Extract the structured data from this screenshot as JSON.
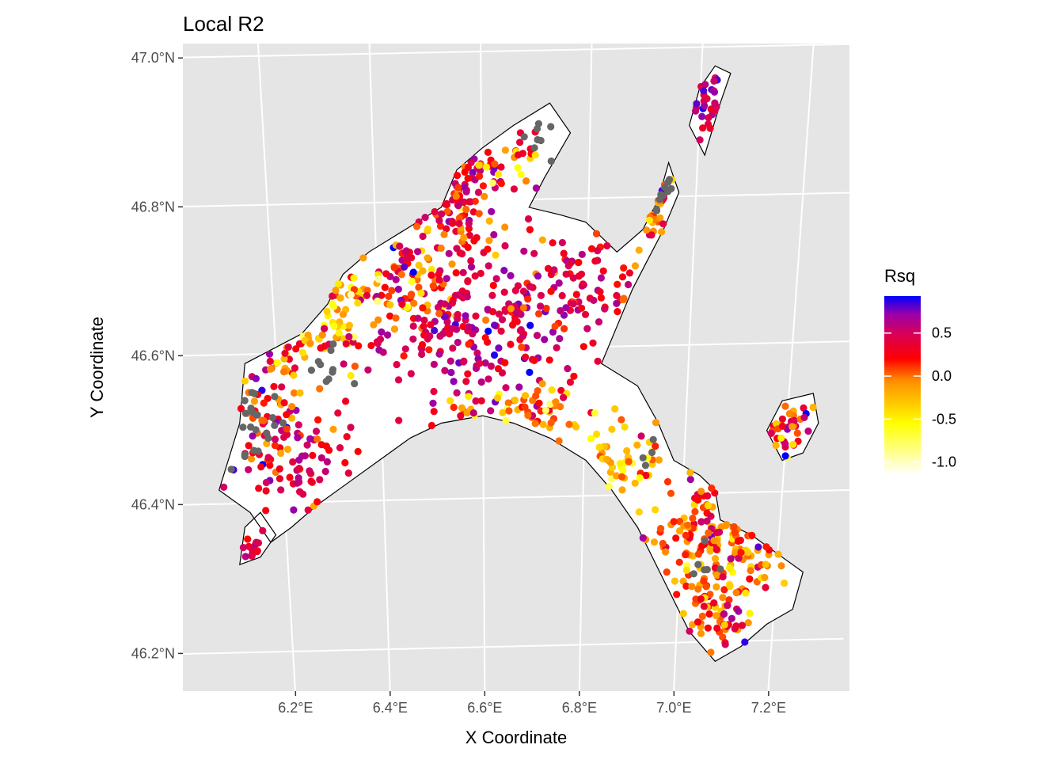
{
  "chart_data": {
    "type": "scatter",
    "subtype": "geographic point map with region outline",
    "title": "Local R2",
    "xlabel": "X Coordinate",
    "ylabel": "Y Coordinate",
    "xlim": [
      6.02,
      7.31
    ],
    "ylim": [
      46.14,
      47.01
    ],
    "x_ticks": [
      {
        "value": 6.2,
        "label": "6.2°E"
      },
      {
        "value": 6.4,
        "label": "6.4°E"
      },
      {
        "value": 6.6,
        "label": "6.6°E"
      },
      {
        "value": 6.8,
        "label": "6.8°E"
      },
      {
        "value": 7.0,
        "label": "7.0°E"
      },
      {
        "value": 7.2,
        "label": "7.2°E"
      }
    ],
    "y_ticks": [
      {
        "value": 46.2,
        "label": "46.2°N"
      },
      {
        "value": 46.4,
        "label": "46.4°N"
      },
      {
        "value": 46.6,
        "label": "46.6°N"
      },
      {
        "value": 46.8,
        "label": "46.8°N"
      },
      {
        "value": 47.0,
        "label": "47.0°N"
      }
    ],
    "grid": true,
    "panel_background": "#e5e5e5",
    "grid_color": "#ffffff",
    "legend": {
      "title": "Rsq",
      "position": "right",
      "range": [
        -1.15,
        0.93
      ],
      "breaks": [
        {
          "value": 0.5,
          "label": "0.5"
        },
        {
          "value": 0.0,
          "label": "0.0"
        },
        {
          "value": -0.5,
          "label": "-0.5"
        },
        {
          "value": -1.0,
          "label": "-1.0"
        }
      ],
      "gradient": [
        {
          "value": -1.15,
          "color": "#ffffff"
        },
        {
          "value": -0.55,
          "color": "#ffff00"
        },
        {
          "value": -0.05,
          "color": "#ff8c00"
        },
        {
          "value": 0.2,
          "color": "#ff0000"
        },
        {
          "value": 0.5,
          "color": "#d6005a"
        },
        {
          "value": 0.72,
          "color": "#9a00aa"
        },
        {
          "value": 0.93,
          "color": "#0000ff"
        }
      ]
    },
    "na_color": "#666666",
    "outline_color": "#000000",
    "region_outline": [
      [
        [
          6.09,
          46.41
        ],
        [
          6.13,
          46.5
        ],
        [
          6.14,
          46.58
        ],
        [
          6.25,
          46.62
        ],
        [
          6.3,
          46.66
        ],
        [
          6.33,
          46.7
        ],
        [
          6.38,
          46.73
        ],
        [
          6.45,
          46.76
        ],
        [
          6.52,
          46.79
        ],
        [
          6.55,
          46.84
        ],
        [
          6.6,
          46.87
        ],
        [
          6.66,
          46.9
        ],
        [
          6.73,
          46.93
        ],
        [
          6.77,
          46.89
        ],
        [
          6.72,
          46.83
        ],
        [
          6.69,
          46.79
        ],
        [
          6.75,
          46.78
        ],
        [
          6.8,
          46.77
        ],
        [
          6.86,
          46.73
        ],
        [
          6.91,
          46.76
        ],
        [
          6.94,
          46.8
        ],
        [
          6.96,
          46.85
        ],
        [
          6.98,
          46.81
        ],
        [
          6.95,
          46.76
        ],
        [
          6.92,
          46.72
        ],
        [
          6.89,
          46.68
        ],
        [
          6.86,
          46.63
        ],
        [
          6.83,
          46.58
        ],
        [
          6.9,
          46.55
        ],
        [
          6.94,
          46.5
        ],
        [
          6.97,
          46.45
        ],
        [
          7.02,
          46.43
        ],
        [
          7.05,
          46.41
        ],
        [
          7.06,
          46.37
        ],
        [
          7.12,
          46.35
        ],
        [
          7.18,
          46.32
        ],
        [
          7.22,
          46.3
        ],
        [
          7.2,
          46.25
        ],
        [
          7.15,
          46.23
        ],
        [
          7.1,
          46.2
        ],
        [
          7.05,
          46.18
        ],
        [
          7.0,
          46.22
        ],
        [
          6.95,
          46.29
        ],
        [
          6.9,
          46.36
        ],
        [
          6.85,
          46.41
        ],
        [
          6.8,
          46.45
        ],
        [
          6.73,
          46.48
        ],
        [
          6.66,
          46.5
        ],
        [
          6.6,
          46.51
        ],
        [
          6.52,
          46.5
        ],
        [
          6.46,
          46.48
        ],
        [
          6.4,
          46.45
        ],
        [
          6.34,
          46.42
        ],
        [
          6.28,
          46.39
        ],
        [
          6.23,
          46.36
        ],
        [
          6.19,
          46.34
        ],
        [
          6.15,
          46.38
        ],
        [
          6.09,
          46.41
        ]
      ],
      [
        [
          6.13,
          46.31
        ],
        [
          6.17,
          46.32
        ],
        [
          6.2,
          46.35
        ],
        [
          6.17,
          46.38
        ],
        [
          6.14,
          46.36
        ],
        [
          6.13,
          46.31
        ]
      ],
      [
        [
          7.0,
          46.9
        ],
        [
          7.03,
          46.86
        ],
        [
          7.06,
          46.93
        ],
        [
          7.08,
          46.97
        ],
        [
          7.05,
          46.98
        ],
        [
          7.02,
          46.95
        ],
        [
          7.0,
          46.9
        ]
      ],
      [
        [
          7.18,
          46.53
        ],
        [
          7.24,
          46.54
        ],
        [
          7.25,
          46.5
        ],
        [
          7.22,
          46.46
        ],
        [
          7.18,
          46.45
        ],
        [
          7.15,
          46.49
        ],
        [
          7.18,
          46.53
        ]
      ]
    ],
    "clusters": [
      {
        "center": [
          6.55,
          46.8
        ],
        "spread": [
          0.05,
          0.035
        ],
        "count": 90,
        "value_mean": 0.35,
        "value_sd": 0.28
      },
      {
        "center": [
          6.45,
          46.7
        ],
        "spread": [
          0.07,
          0.04
        ],
        "count": 100,
        "value_mean": 0.1,
        "value_sd": 0.35
      },
      {
        "center": [
          6.28,
          46.63
        ],
        "spread": [
          0.06,
          0.035
        ],
        "count": 75,
        "value_mean": -0.2,
        "value_sd": 0.35
      },
      {
        "center": [
          6.18,
          46.52
        ],
        "spread": [
          0.05,
          0.05
        ],
        "count": 70,
        "value_mean": 0.3,
        "value_sd": 0.3
      },
      {
        "center": [
          6.25,
          46.44
        ],
        "spread": [
          0.06,
          0.03
        ],
        "count": 60,
        "value_mean": 0.35,
        "value_sd": 0.25
      },
      {
        "center": [
          6.55,
          46.62
        ],
        "spread": [
          0.07,
          0.05
        ],
        "count": 130,
        "value_mean": 0.5,
        "value_sd": 0.2
      },
      {
        "center": [
          6.7,
          46.66
        ],
        "spread": [
          0.07,
          0.06
        ],
        "count": 110,
        "value_mean": 0.35,
        "value_sd": 0.28
      },
      {
        "center": [
          6.82,
          46.69
        ],
        "spread": [
          0.04,
          0.04
        ],
        "count": 45,
        "value_mean": 0.4,
        "value_sd": 0.2
      },
      {
        "center": [
          6.68,
          46.52
        ],
        "spread": [
          0.06,
          0.02
        ],
        "count": 55,
        "value_mean": 0.0,
        "value_sd": 0.35
      },
      {
        "center": [
          6.87,
          46.45
        ],
        "spread": [
          0.05,
          0.03
        ],
        "count": 55,
        "value_mean": -0.25,
        "value_sd": 0.3
      },
      {
        "center": [
          7.02,
          46.33
        ],
        "spread": [
          0.05,
          0.05
        ],
        "count": 100,
        "value_mean": 0.0,
        "value_sd": 0.3
      },
      {
        "center": [
          7.12,
          46.38
        ],
        "spread": [
          0.05,
          0.05
        ],
        "count": 80,
        "value_mean": 0.1,
        "value_sd": 0.3
      },
      {
        "center": [
          7.05,
          46.24
        ],
        "spread": [
          0.04,
          0.03
        ],
        "count": 50,
        "value_mean": 0.2,
        "value_sd": 0.3
      },
      {
        "center": [
          7.18,
          46.49
        ],
        "spread": [
          0.03,
          0.03
        ],
        "count": 35,
        "value_mean": 0.2,
        "value_sd": 0.3
      },
      {
        "center": [
          7.04,
          46.93
        ],
        "spread": [
          0.025,
          0.02
        ],
        "count": 30,
        "value_mean": 0.55,
        "value_sd": 0.15
      },
      {
        "center": [
          6.93,
          46.78
        ],
        "spread": [
          0.02,
          0.04
        ],
        "count": 30,
        "value_mean": 0.0,
        "value_sd": 0.3
      },
      {
        "center": [
          6.66,
          46.86
        ],
        "spread": [
          0.04,
          0.025
        ],
        "count": 30,
        "value_mean": 0.0,
        "value_sd": 0.35
      },
      {
        "center": [
          6.16,
          46.33
        ],
        "spread": [
          0.015,
          0.015
        ],
        "count": 15,
        "value_mean": 0.5,
        "value_sd": 0.15
      }
    ],
    "na_clusters": [
      {
        "center": [
          6.15,
          46.5
        ],
        "spread": [
          0.03,
          0.03
        ],
        "count": 22
      },
      {
        "center": [
          6.3,
          46.57
        ],
        "spread": [
          0.02,
          0.02
        ],
        "count": 10
      },
      {
        "center": [
          6.7,
          46.88
        ],
        "spread": [
          0.03,
          0.015
        ],
        "count": 8
      },
      {
        "center": [
          6.93,
          46.82
        ],
        "spread": [
          0.015,
          0.015
        ],
        "count": 10
      },
      {
        "center": [
          7.02,
          46.32
        ],
        "spread": [
          0.02,
          0.02
        ],
        "count": 6
      },
      {
        "center": [
          6.92,
          46.45
        ],
        "spread": [
          0.015,
          0.01
        ],
        "count": 4
      }
    ]
  }
}
